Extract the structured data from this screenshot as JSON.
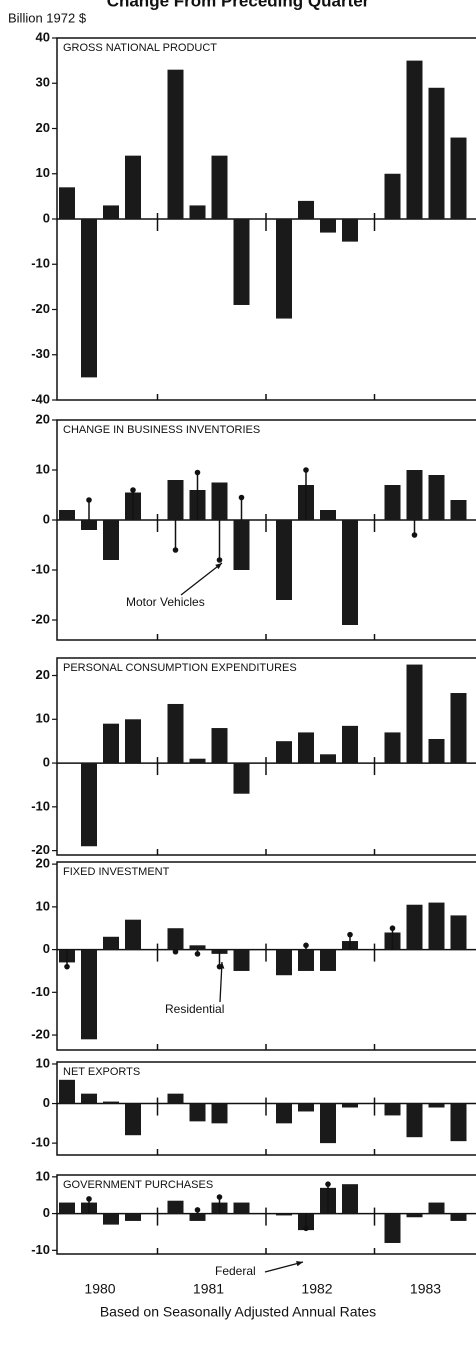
{
  "title": "Change From Preceding Quarter",
  "unit_label": "Billion 1972 $",
  "x_labels": [
    "1980",
    "1981",
    "1982",
    "1983"
  ],
  "note": "Based on Seasonally Adjusted Annual Rates",
  "chart_data": [
    {
      "type": "bar",
      "title": "GROSS NATIONAL PRODUCT",
      "color": "#1a1a1a",
      "categories": [
        null,
        null,
        null,
        null,
        null,
        null,
        null,
        null,
        null,
        null,
        null,
        null,
        null,
        null,
        null,
        null
      ],
      "values": [
        7,
        -35,
        3,
        14,
        33,
        3,
        14,
        -19,
        -22,
        4,
        -3,
        -5,
        10,
        35,
        29,
        18
      ],
      "ylim": [
        -40,
        40
      ],
      "yticks": [
        -40,
        -30,
        -20,
        -10,
        0,
        10,
        20,
        30,
        40
      ]
    },
    {
      "type": "bar",
      "title": "CHANGE IN BUSINESS INVENTORIES",
      "color": "#1a1a1a",
      "categories": [
        null,
        null,
        null,
        null,
        null,
        null,
        null,
        null,
        null,
        null,
        null,
        null,
        null,
        null,
        null,
        null
      ],
      "values": [
        2,
        -2,
        -8,
        5.5,
        8,
        6,
        7.5,
        -10,
        -16,
        7,
        2,
        -21,
        7,
        10,
        9,
        4
      ],
      "markers": {
        "label": "Motor Vehicles",
        "values": [
          null,
          4,
          null,
          6,
          -6,
          9.5,
          -8,
          4.5,
          null,
          10,
          null,
          null,
          null,
          -3,
          null,
          null
        ]
      },
      "ylim": [
        -24,
        20
      ],
      "yticks": [
        -20,
        -10,
        0,
        10,
        20
      ]
    },
    {
      "type": "bar",
      "title": "PERSONAL CONSUMPTION EXPENDITURES",
      "color": "#1a1a1a",
      "categories": [
        null,
        null,
        null,
        null,
        null,
        null,
        null,
        null,
        null,
        null,
        null,
        null,
        null,
        null,
        null,
        null
      ],
      "values": [
        0,
        -19,
        9,
        10,
        13.5,
        1,
        8,
        -7,
        5,
        7,
        2,
        8.5,
        7,
        22.5,
        5.5,
        16
      ],
      "ylim": [
        -21,
        24
      ],
      "yticks": [
        -20,
        -10,
        0,
        10,
        20
      ]
    },
    {
      "type": "bar",
      "title": "FIXED INVESTMENT",
      "color": "#1a1a1a",
      "categories": [
        null,
        null,
        null,
        null,
        null,
        null,
        null,
        null,
        null,
        null,
        null,
        null,
        null,
        null,
        null,
        null
      ],
      "values": [
        -3,
        -21,
        3,
        7,
        5,
        1,
        -1,
        -5,
        -6,
        -5,
        -5,
        2,
        4,
        10.5,
        11,
        8
      ],
      "markers": {
        "label": "Residential",
        "values": [
          -4,
          null,
          null,
          null,
          -0.5,
          -1,
          -4,
          null,
          null,
          1,
          null,
          3.5,
          5,
          null,
          null,
          null
        ]
      },
      "ylim": [
        -23.5,
        20.5
      ],
      "yticks": [
        -20,
        -10,
        0,
        10,
        20
      ]
    },
    {
      "type": "bar",
      "title": "NET EXPORTS",
      "color": "#1a1a1a",
      "categories": [
        null,
        null,
        null,
        null,
        null,
        null,
        null,
        null,
        null,
        null,
        null,
        null,
        null,
        null,
        null,
        null
      ],
      "values": [
        6,
        2.5,
        0.5,
        -8,
        2.5,
        -4.5,
        -5,
        0,
        -5,
        -2,
        -10,
        -1,
        -3,
        -8.5,
        -1,
        -9.5
      ],
      "ylim": [
        -13,
        10.5
      ],
      "yticks": [
        -10,
        0,
        10
      ]
    },
    {
      "type": "bar",
      "title": "GOVERNMENT PURCHASES",
      "color": "#1a1a1a",
      "categories": [
        null,
        null,
        null,
        null,
        null,
        null,
        null,
        null,
        null,
        null,
        null,
        null,
        null,
        null,
        null,
        null
      ],
      "values": [
        3,
        3,
        -3,
        -2,
        3.5,
        -2,
        3,
        3,
        -0.5,
        -4.5,
        7,
        8,
        -8,
        -1,
        3,
        -2
      ],
      "markers": {
        "label": "Federal",
        "values": [
          null,
          4,
          null,
          null,
          null,
          1,
          4.5,
          null,
          null,
          -4,
          8,
          null,
          null,
          null,
          null,
          null
        ]
      },
      "ylim": [
        -11,
        10.5
      ],
      "yticks": [
        -10,
        0,
        10
      ]
    }
  ]
}
